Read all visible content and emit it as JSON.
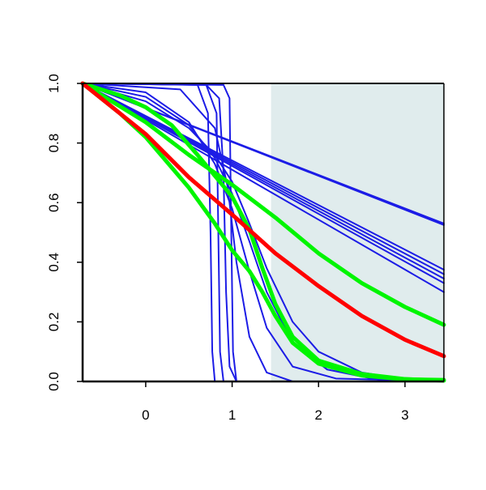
{
  "chart_data": {
    "type": "line",
    "title": "",
    "xlabel": "",
    "ylabel": "",
    "xlim": [
      -0.73,
      3.45
    ],
    "ylim": [
      0,
      1
    ],
    "grid": false,
    "legend": "none",
    "x_ticks": [
      0,
      1,
      2,
      3
    ],
    "x_tick_labels": [
      "0",
      "1",
      "2",
      "3"
    ],
    "y_ticks": [
      0,
      0.2,
      0.4,
      0.6,
      0.8,
      1
    ],
    "y_tick_labels": [
      "0.0",
      "0.2",
      "0.4",
      "0.6",
      "0.8",
      "1.0"
    ],
    "shaded_region": {
      "x_start": 1.45,
      "x_end": 3.45,
      "color": "#e0eced"
    },
    "colors": {
      "blue": "#1c1ce6",
      "red": "#ff0000",
      "green": "#00f500"
    },
    "series": [
      {
        "color": "blue",
        "points": [
          [
            -0.73,
            1.0
          ],
          [
            3.45,
            0.525
          ]
        ]
      },
      {
        "color": "blue",
        "points": [
          [
            -0.73,
            1.0
          ],
          [
            3.45,
            0.53
          ]
        ]
      },
      {
        "color": "blue",
        "points": [
          [
            -0.73,
            1.0
          ],
          [
            3.45,
            0.375
          ]
        ]
      },
      {
        "color": "blue",
        "points": [
          [
            -0.73,
            1.0
          ],
          [
            3.45,
            0.36
          ]
        ]
      },
      {
        "color": "blue",
        "points": [
          [
            -0.73,
            1.0
          ],
          [
            3.45,
            0.345
          ]
        ]
      },
      {
        "color": "blue",
        "points": [
          [
            -0.73,
            1.0
          ],
          [
            3.45,
            0.33
          ]
        ]
      },
      {
        "color": "blue",
        "points": [
          [
            -0.73,
            1.0
          ],
          [
            3.45,
            0.3
          ]
        ]
      },
      {
        "color": "blue",
        "points": [
          [
            -0.73,
            1.0
          ],
          [
            0.6,
            0.995
          ],
          [
            0.72,
            0.9
          ],
          [
            0.75,
            0.5
          ],
          [
            0.77,
            0.1
          ],
          [
            0.8,
            0.0
          ],
          [
            3.45,
            0.0
          ]
        ]
      },
      {
        "color": "blue",
        "points": [
          [
            -0.73,
            1.0
          ],
          [
            0.7,
            0.995
          ],
          [
            0.82,
            0.9
          ],
          [
            0.84,
            0.5
          ],
          [
            0.86,
            0.1
          ],
          [
            0.9,
            0.0
          ],
          [
            3.45,
            0.0
          ]
        ]
      },
      {
        "color": "blue",
        "points": [
          [
            -0.73,
            1.0
          ],
          [
            0.7,
            0.995
          ],
          [
            0.85,
            0.95
          ],
          [
            0.9,
            0.7
          ],
          [
            0.93,
            0.3
          ],
          [
            0.97,
            0.05
          ],
          [
            1.05,
            0.0
          ],
          [
            3.45,
            0.0
          ]
        ]
      },
      {
        "color": "blue",
        "points": [
          [
            -0.73,
            1.0
          ],
          [
            0.9,
            0.995
          ],
          [
            0.97,
            0.95
          ],
          [
            0.99,
            0.5
          ],
          [
            1.01,
            0.1
          ],
          [
            1.05,
            0.0
          ],
          [
            3.45,
            0.0
          ]
        ]
      },
      {
        "color": "blue",
        "points": [
          [
            -0.73,
            1.0
          ],
          [
            0.4,
            0.98
          ],
          [
            0.8,
            0.85
          ],
          [
            0.95,
            0.65
          ],
          [
            1.05,
            0.4
          ],
          [
            1.2,
            0.15
          ],
          [
            1.4,
            0.03
          ],
          [
            1.7,
            0.0
          ],
          [
            3.45,
            0.0
          ]
        ]
      },
      {
        "color": "blue",
        "points": [
          [
            -0.73,
            1.0
          ],
          [
            0.0,
            0.97
          ],
          [
            0.5,
            0.87
          ],
          [
            0.8,
            0.73
          ],
          [
            1.0,
            0.58
          ],
          [
            1.2,
            0.37
          ],
          [
            1.4,
            0.18
          ],
          [
            1.7,
            0.05
          ],
          [
            2.2,
            0.01
          ],
          [
            3.45,
            0.0
          ]
        ]
      },
      {
        "color": "blue",
        "points": [
          [
            -0.73,
            1.0
          ],
          [
            0.0,
            0.955
          ],
          [
            0.5,
            0.86
          ],
          [
            0.8,
            0.75
          ],
          [
            1.0,
            0.63
          ],
          [
            1.2,
            0.47
          ],
          [
            1.4,
            0.3
          ],
          [
            1.7,
            0.13
          ],
          [
            2.1,
            0.04
          ],
          [
            2.7,
            0.005
          ],
          [
            3.45,
            0.0
          ]
        ]
      },
      {
        "color": "blue",
        "points": [
          [
            -0.73,
            1.0
          ],
          [
            0.0,
            0.94
          ],
          [
            0.5,
            0.85
          ],
          [
            0.8,
            0.76
          ],
          [
            1.0,
            0.67
          ],
          [
            1.2,
            0.53
          ],
          [
            1.4,
            0.38
          ],
          [
            1.7,
            0.2
          ],
          [
            2.0,
            0.1
          ],
          [
            2.5,
            0.03
          ],
          [
            3.0,
            0.008
          ],
          [
            3.45,
            0.0
          ]
        ]
      },
      {
        "color": "red",
        "points": [
          [
            -0.73,
            1.0
          ],
          [
            0.0,
            0.83
          ],
          [
            0.5,
            0.685
          ],
          [
            1.0,
            0.56
          ],
          [
            1.5,
            0.43
          ],
          [
            2.0,
            0.32
          ],
          [
            2.5,
            0.22
          ],
          [
            3.0,
            0.14
          ],
          [
            3.45,
            0.085
          ]
        ]
      },
      {
        "color": "green",
        "points": [
          [
            -0.73,
            1.0
          ],
          [
            0.0,
            0.87
          ],
          [
            0.5,
            0.76
          ],
          [
            1.0,
            0.66
          ],
          [
            1.5,
            0.55
          ],
          [
            2.0,
            0.43
          ],
          [
            2.5,
            0.33
          ],
          [
            3.0,
            0.25
          ],
          [
            3.45,
            0.19
          ]
        ]
      },
      {
        "color": "green",
        "points": [
          [
            -0.73,
            1.0
          ],
          [
            -0.3,
            0.9
          ],
          [
            0.0,
            0.82
          ],
          [
            0.5,
            0.65
          ],
          [
            0.8,
            0.53
          ],
          [
            1.0,
            0.44
          ],
          [
            1.2,
            0.37
          ],
          [
            1.35,
            0.3
          ],
          [
            1.5,
            0.22
          ],
          [
            1.7,
            0.13
          ],
          [
            2.0,
            0.06
          ],
          [
            2.5,
            0.02
          ],
          [
            3.0,
            0.007
          ],
          [
            3.45,
            0.005
          ]
        ]
      },
      {
        "color": "green",
        "points": [
          [
            -0.73,
            1.0
          ],
          [
            -0.3,
            0.96
          ],
          [
            0.0,
            0.92
          ],
          [
            0.3,
            0.86
          ],
          [
            0.6,
            0.76
          ],
          [
            0.8,
            0.69
          ],
          [
            1.0,
            0.62
          ],
          [
            1.2,
            0.51
          ],
          [
            1.35,
            0.38
          ],
          [
            1.5,
            0.26
          ],
          [
            1.7,
            0.15
          ],
          [
            2.0,
            0.07
          ],
          [
            2.5,
            0.025
          ],
          [
            3.0,
            0.008
          ],
          [
            3.45,
            0.003
          ]
        ]
      }
    ]
  }
}
